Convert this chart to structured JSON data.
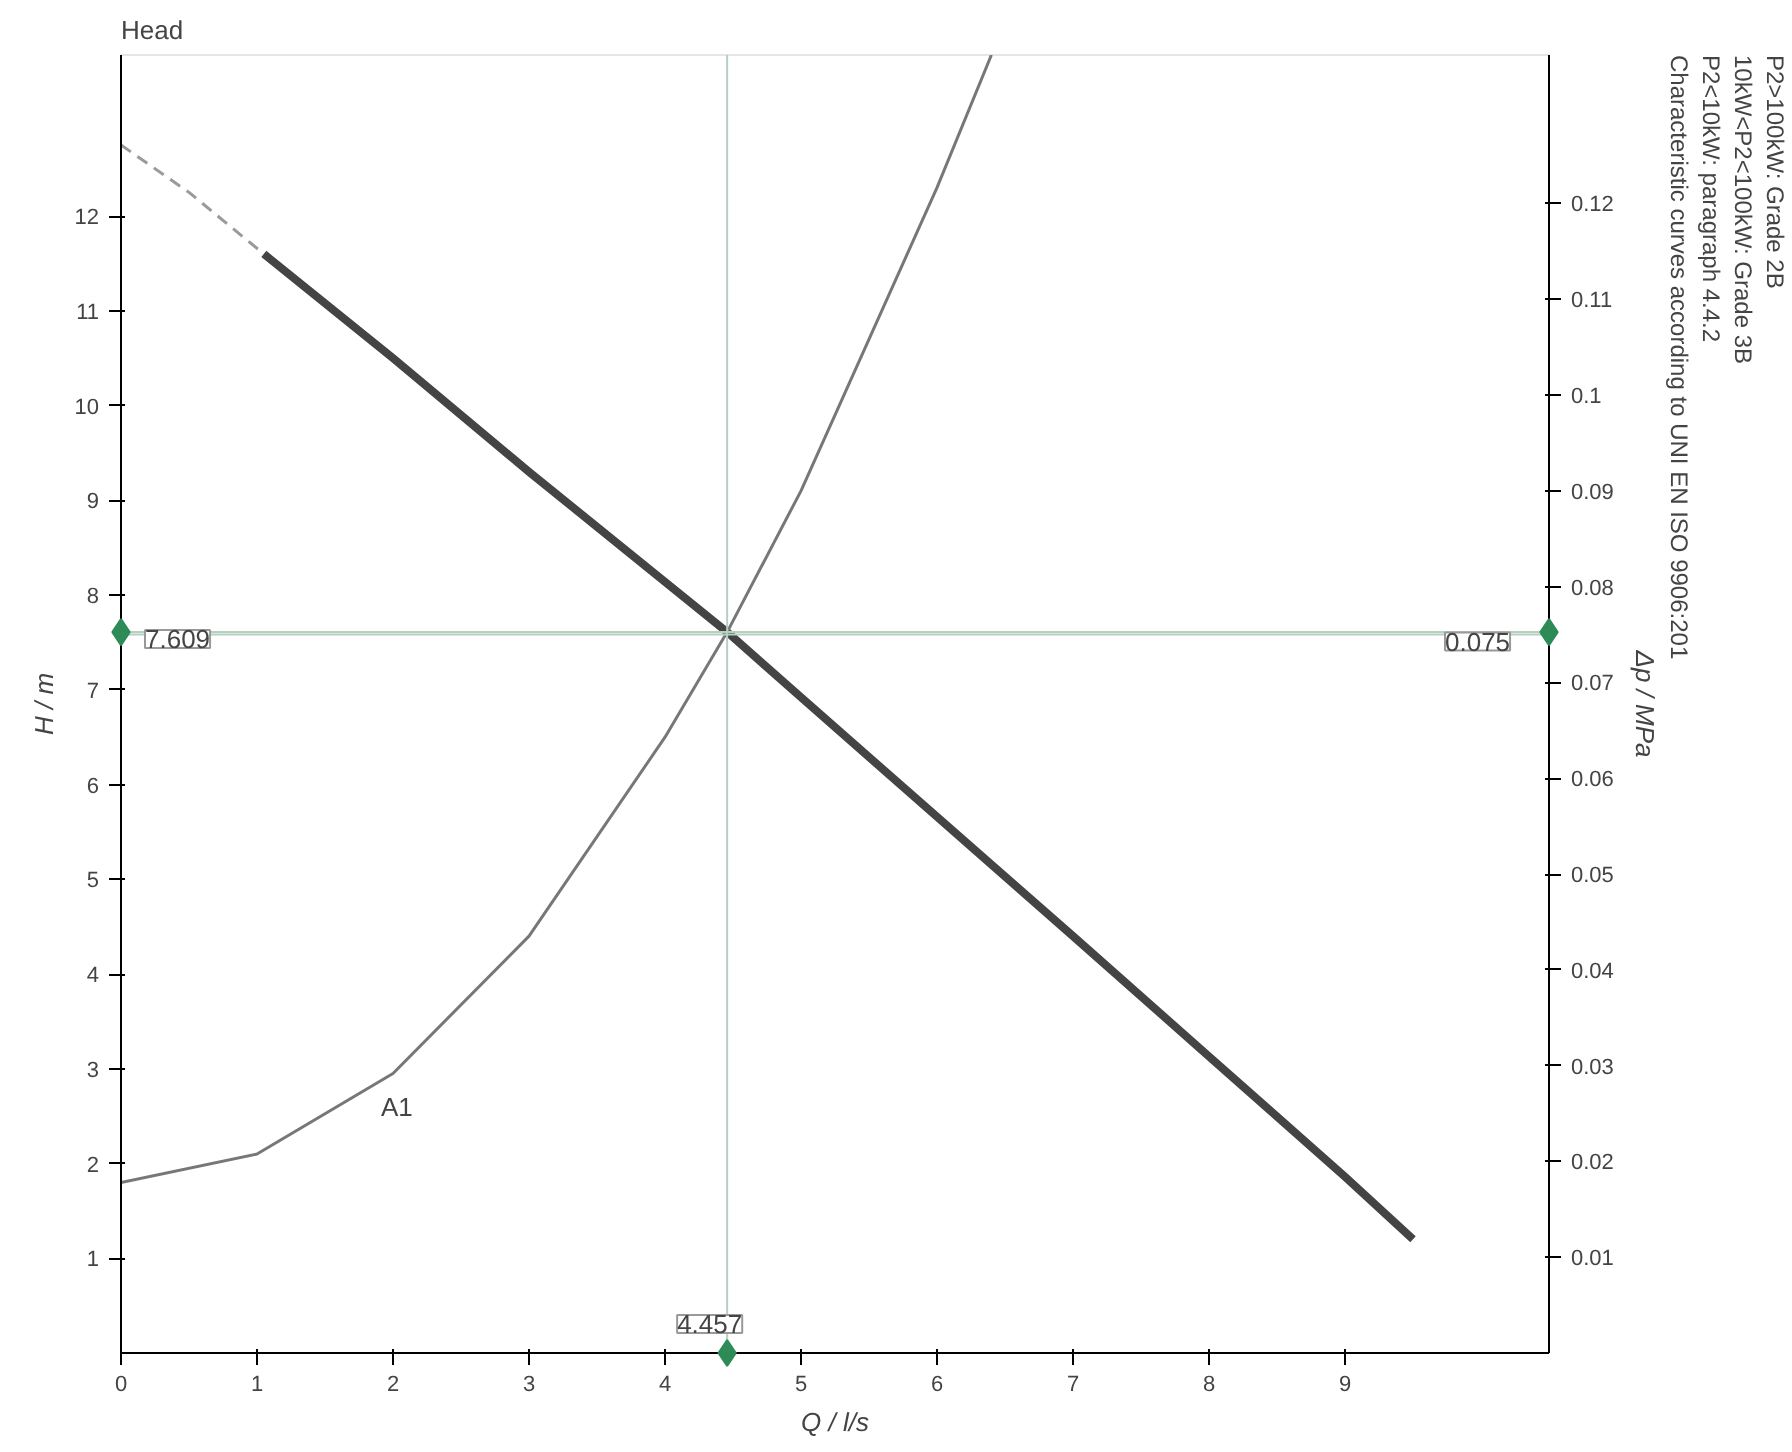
{
  "chart_data": {
    "type": "line",
    "title": "Head",
    "xlabel": "Q / l/s",
    "ylabel": "H / m",
    "y2label": "Δp / MPa",
    "xlim": [
      0,
      10.5
    ],
    "xticks": [
      0,
      1,
      2,
      3,
      4,
      5,
      6,
      7,
      8,
      9
    ],
    "ylim": [
      0,
      13.7
    ],
    "yticks": [
      1,
      2,
      3,
      4,
      5,
      6,
      7,
      8,
      9,
      10,
      11,
      12
    ],
    "y2lim": [
      0,
      0.1355
    ],
    "y2ticks": [
      0.01,
      0.02,
      0.03,
      0.04,
      0.05,
      0.06,
      0.07,
      0.08,
      0.09,
      0.1,
      0.11,
      0.12
    ],
    "series": [
      {
        "color": "#9a9a9a",
        "line_style": "dashed",
        "x": [
          0,
          0.5,
          1.05
        ],
        "values": [
          12.75,
          12.25,
          11.6
        ]
      },
      {
        "color": "#444444",
        "line_style": "solid",
        "x": [
          1.05,
          2,
          3,
          4,
          4.457,
          5,
          6,
          7,
          8,
          9,
          9.5
        ],
        "values": [
          11.6,
          10.5,
          9.3,
          8.14,
          7.609,
          6.92,
          5.66,
          4.4,
          3.13,
          1.86,
          1.2
        ]
      },
      {
        "color": "#777777",
        "line_style": "solid",
        "x": [
          0,
          1,
          2,
          3,
          4,
          4.457,
          5,
          6,
          6.4
        ],
        "values": [
          1.8,
          2.1,
          2.95,
          4.4,
          6.5,
          7.609,
          9.1,
          12.3,
          13.7
        ]
      },
      {
        "type": "scatter",
        "color": "#2e8b57",
        "marker": "diamond",
        "x": [
          0,
          4.457,
          10.5
        ],
        "values": [
          7.609,
          0,
          7.609
        ]
      }
    ],
    "ref_lines": [
      {
        "axis": "x",
        "value": 4.457,
        "label": "4.457",
        "color": "#b5cfc0"
      },
      {
        "axis": "y",
        "value": 7.609,
        "label": "7.609",
        "color": "#b5cfc0"
      },
      {
        "axis": "y2",
        "value": 0.075,
        "label": "0.075",
        "color": "#b5cfc0"
      }
    ],
    "annotations": [
      {
        "text": "A1",
        "x": 2,
        "y": 2.9
      },
      "Characteristic curves according to UNI EN ISO 9906:201",
      "P2<10kW: paragraph 4.4.2",
      "10kW<P2<100kW: Grade 3B",
      "P2>100kW: Grade 2B"
    ],
    "grid": false
  }
}
